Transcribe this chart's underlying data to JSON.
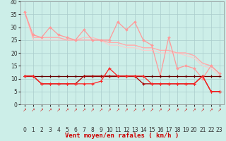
{
  "background_color": "#cceee8",
  "grid_color": "#aacccc",
  "xlabel": "Vent moyen/en rafales ( km/h )",
  "xlim": [
    -0.5,
    23.5
  ],
  "ylim": [
    0,
    40
  ],
  "yticks": [
    0,
    5,
    10,
    15,
    20,
    25,
    30,
    35,
    40
  ],
  "xticks": [
    0,
    1,
    2,
    3,
    4,
    5,
    6,
    7,
    8,
    9,
    10,
    11,
    12,
    13,
    14,
    15,
    16,
    17,
    18,
    19,
    20,
    21,
    22,
    23
  ],
  "line1_x": [
    0,
    1,
    2,
    3,
    4,
    5,
    6,
    7,
    8,
    9,
    10,
    11,
    12,
    13,
    14,
    15,
    16,
    17,
    18,
    19,
    20,
    21,
    22,
    23
  ],
  "line1_y": [
    36,
    27,
    26,
    30,
    27,
    26,
    25,
    29,
    25,
    25,
    25,
    32,
    29,
    32,
    25,
    23,
    11,
    26,
    14,
    15,
    14,
    10,
    15,
    12
  ],
  "line1_color": "#ff9999",
  "line2_x": [
    0,
    1,
    2,
    3,
    4,
    5,
    6,
    7,
    8,
    9,
    10,
    11,
    12,
    13,
    14,
    15,
    16,
    17,
    18,
    19,
    20,
    21,
    22,
    23
  ],
  "line2_y": [
    36,
    26,
    26,
    26,
    26,
    25,
    25,
    25,
    25,
    25,
    24,
    24,
    23,
    23,
    22,
    22,
    21,
    21,
    20,
    20,
    19,
    16,
    15,
    12
  ],
  "line2_color": "#ffaaaa",
  "line3_x": [
    0,
    1,
    2,
    3,
    4,
    5,
    6,
    7,
    8,
    9,
    10,
    11,
    12,
    13,
    14,
    15,
    16,
    17,
    18,
    19,
    20,
    21,
    22,
    23
  ],
  "line3_y": [
    36,
    26,
    26,
    26,
    26,
    25,
    25,
    26,
    26,
    25,
    24,
    24,
    23,
    23,
    22,
    22,
    21,
    21,
    20,
    20,
    19,
    16,
    15,
    12
  ],
  "line3_color": "#ffbbbb",
  "line4_x": [
    0,
    1,
    2,
    3,
    4,
    5,
    6,
    7,
    8,
    9,
    10,
    11,
    12,
    13,
    14,
    15,
    16,
    17,
    18,
    19,
    20,
    21,
    22,
    23
  ],
  "line4_y": [
    36,
    25,
    25,
    25,
    25,
    25,
    25,
    25,
    25,
    25,
    23,
    23,
    22,
    22,
    21,
    21,
    20,
    20,
    20,
    19,
    18,
    15,
    14,
    11
  ],
  "line4_color": "#ffcccc",
  "line5_x": [
    0,
    1,
    2,
    3,
    4,
    5,
    6,
    7,
    8,
    9,
    10,
    11,
    12,
    13,
    14,
    15,
    16,
    17,
    18,
    19,
    20,
    21,
    22,
    23
  ],
  "line5_y": [
    11,
    11,
    11,
    11,
    11,
    11,
    11,
    11,
    11,
    11,
    11,
    11,
    11,
    11,
    11,
    11,
    11,
    11,
    11,
    11,
    11,
    11,
    11,
    11
  ],
  "line5_color": "#660000",
  "line6_x": [
    0,
    1,
    2,
    3,
    4,
    5,
    6,
    7,
    8,
    9,
    10,
    11,
    12,
    13,
    14,
    15,
    16,
    17,
    18,
    19,
    20,
    21,
    22,
    23
  ],
  "line6_y": [
    11,
    11,
    8,
    8,
    8,
    8,
    8,
    11,
    11,
    11,
    11,
    11,
    11,
    11,
    8,
    8,
    8,
    8,
    8,
    8,
    8,
    11,
    5,
    5
  ],
  "line6_color": "#aa0000",
  "line7_x": [
    0,
    1,
    2,
    3,
    4,
    5,
    6,
    7,
    8,
    9,
    10,
    11,
    12,
    13,
    14,
    15,
    16,
    17,
    18,
    19,
    20,
    21,
    22,
    23
  ],
  "line7_y": [
    11,
    11,
    8,
    8,
    8,
    8,
    8,
    8,
    8,
    9,
    14,
    11,
    11,
    11,
    11,
    8,
    8,
    8,
    8,
    8,
    8,
    11,
    5,
    5
  ],
  "line7_color": "#ff2222",
  "arrow_color": "#cc3333",
  "xlabel_color": "#cc0000",
  "xlabel_fontsize": 6.5,
  "tick_fontsize": 5.5
}
